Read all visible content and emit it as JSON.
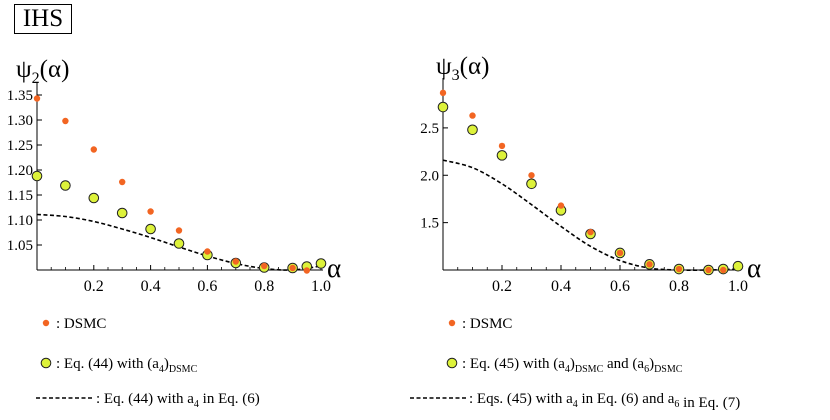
{
  "badge": "IHS",
  "colors": {
    "dsmc": "#F26522",
    "eq_fill": "#DDF23A",
    "eq_stroke": "#222222",
    "curve": "#000000"
  },
  "chart_data": [
    {
      "type": "scatter",
      "ylabel": "ψ2(α)",
      "xlabel": "α",
      "xlim": [
        0,
        1.0
      ],
      "ylim": [
        1.0,
        1.35
      ],
      "x_ticks": [
        "0.2",
        "0.4",
        "0.6",
        "0.8",
        "1.0"
      ],
      "y_ticks": [
        "1.05",
        "1.10",
        "1.15",
        "1.20",
        "1.25",
        "1.30",
        "1.35"
      ],
      "series": [
        {
          "name": ": DSMC",
          "kind": "dot",
          "x": [
            0.0,
            0.1,
            0.2,
            0.3,
            0.4,
            0.5,
            0.6,
            0.7,
            0.8,
            0.9,
            0.95
          ],
          "y": [
            1.343,
            1.298,
            1.241,
            1.176,
            1.117,
            1.079,
            1.037,
            1.017,
            1.008,
            1.004,
            0.999
          ]
        },
        {
          "name": ": Eq. (44) with (a4)DSMC",
          "kind": "circle",
          "x": [
            0.0,
            0.1,
            0.2,
            0.3,
            0.4,
            0.5,
            0.6,
            0.7,
            0.8,
            0.9,
            0.95,
            1.0
          ],
          "y": [
            1.188,
            1.169,
            1.144,
            1.114,
            1.082,
            1.053,
            1.03,
            1.014,
            1.005,
            1.004,
            1.007,
            1.013
          ]
        },
        {
          "name": ": Eq. (44) with a4 in Eq. (6)",
          "kind": "dashed",
          "x": [
            0.0,
            0.1,
            0.2,
            0.3,
            0.4,
            0.5,
            0.6,
            0.7,
            0.8,
            0.9,
            1.0
          ],
          "y": [
            1.111,
            1.107,
            1.097,
            1.082,
            1.065,
            1.046,
            1.028,
            1.013,
            1.003,
            1.0,
            1.008
          ]
        }
      ],
      "legend": [
        {
          "kind": "dot",
          "label": ": DSMC",
          "main": ": DSMC",
          "sub": "",
          "tail": "",
          "sub2": ""
        },
        {
          "kind": "circle",
          "label": ": Eq. (44) with (a4)DSMC",
          "main": ": Eq. (44) with (a",
          "sub": "4",
          "tail": ")",
          "sub2": "DSMC"
        },
        {
          "kind": "dashed",
          "label": ": Eq. (44) with a4 in Eq. (6)",
          "main": ": Eq. (44) with a",
          "sub": "4",
          "tail": " in Eq. (6)",
          "sub2": ""
        }
      ]
    },
    {
      "type": "scatter",
      "ylabel": "ψ3(α)",
      "xlabel": "α",
      "xlim": [
        0,
        1.0
      ],
      "ylim": [
        1.0,
        2.9
      ],
      "x_ticks": [
        "0.2",
        "0.4",
        "0.6",
        "0.8",
        "1.0"
      ],
      "y_ticks": [
        "1.5",
        "2.0",
        "2.5"
      ],
      "series": [
        {
          "name": ": DSMC",
          "kind": "dot",
          "x": [
            0.0,
            0.1,
            0.2,
            0.3,
            0.4,
            0.5,
            0.6,
            0.7,
            0.8,
            0.9,
            0.95
          ],
          "y": [
            2.87,
            2.63,
            2.31,
            2.0,
            1.68,
            1.4,
            1.18,
            1.06,
            1.01,
            1.0,
            1.0
          ]
        },
        {
          "name": ": Eq. (45) with (a4)DSMC and (a6)DSMC",
          "kind": "circle",
          "x": [
            0.0,
            0.1,
            0.2,
            0.3,
            0.4,
            0.5,
            0.6,
            0.7,
            0.8,
            0.9,
            0.95,
            1.0
          ],
          "y": [
            2.72,
            2.48,
            2.21,
            1.91,
            1.63,
            1.38,
            1.18,
            1.06,
            1.01,
            1.0,
            1.01,
            1.04
          ]
        },
        {
          "name": ": Eqs. (45) with a4 in Eq. (6) and a6 in Eq. (7)",
          "kind": "dashed",
          "x": [
            0.0,
            0.1,
            0.2,
            0.3,
            0.4,
            0.5,
            0.6,
            0.7,
            0.8,
            0.9,
            1.0
          ],
          "y": [
            2.16,
            2.08,
            1.91,
            1.69,
            1.46,
            1.25,
            1.1,
            1.02,
            1.0,
            1.0,
            1.01
          ]
        }
      ],
      "legend": [
        {
          "kind": "dot",
          "label": ": DSMC",
          "main": ": DSMC",
          "sub": "",
          "tail": "",
          "sub2": ""
        },
        {
          "kind": "circle",
          "label": ": Eq. (45) with (a4)DSMC and (a6)DSMC",
          "main": ": Eq. (45) with (a",
          "sub": "4",
          "tail": ")",
          "sub2": "DSMC",
          "tail2": " and (a",
          "sub3": "6",
          "tail3": ")",
          "sub4": "DSMC"
        },
        {
          "kind": "dashed",
          "label": ": Eqs. (45) with a4 in Eq. (6) and a6 in Eq. (7)",
          "main": ": Eqs. (45) with a",
          "sub": "4",
          "tail": " in Eq. (6) and a",
          "sub2": "6",
          "tail2": " in Eq. (7)"
        }
      ]
    }
  ]
}
